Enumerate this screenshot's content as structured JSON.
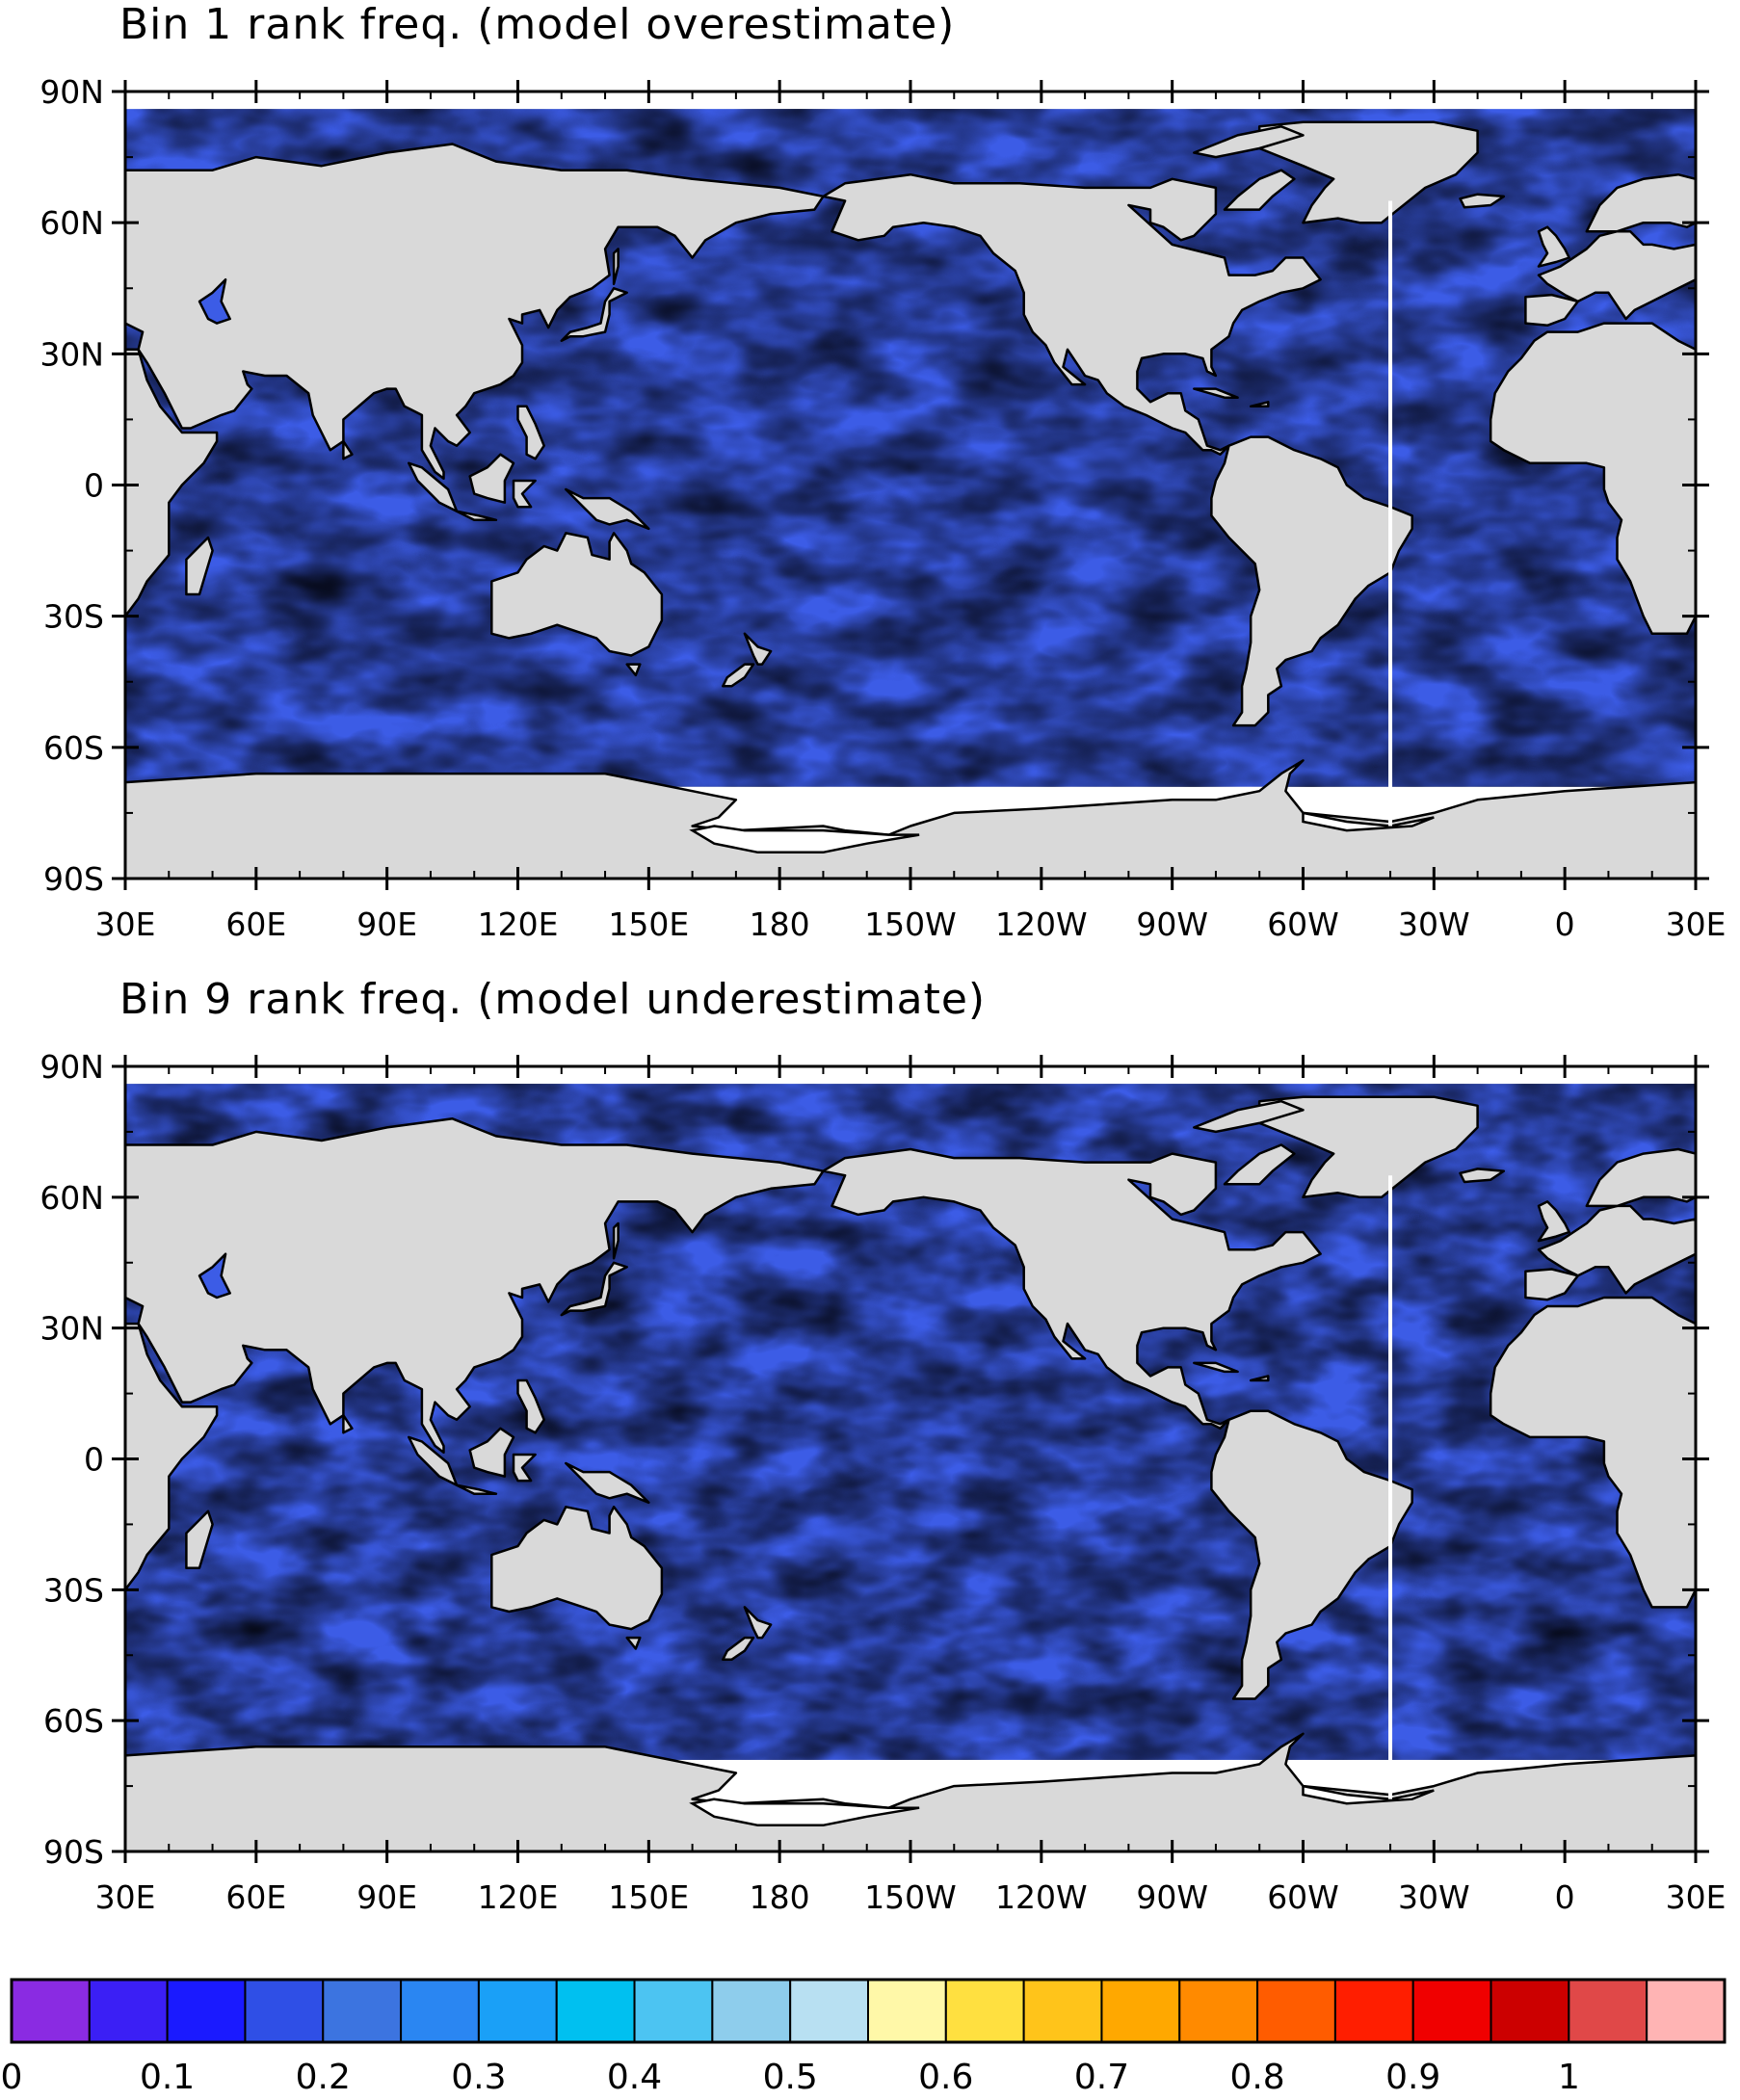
{
  "panels": [
    {
      "title": "Bin 1 rank freq. (model overestimate)"
    },
    {
      "title": "Bin 9 rank freq. (model underestimate)"
    }
  ],
  "lat_labels": [
    "90N",
    "60N",
    "30N",
    "0",
    "30S",
    "60S",
    "90S"
  ],
  "lon_labels": [
    "30E",
    "60E",
    "90E",
    "120E",
    "150E",
    "180",
    "150W",
    "120W",
    "90W",
    "60W",
    "30W",
    "0",
    "30E"
  ],
  "colorbar": {
    "labels": [
      "0",
      "0.1",
      "0.2",
      "0.3",
      "0.4",
      "0.5",
      "0.6",
      "0.7",
      "0.8",
      "0.9",
      "1"
    ],
    "colors": [
      "#8a2be2",
      "#3b1ff5",
      "#1a1aff",
      "#2f4fe6",
      "#3c74e0",
      "#2a86f2",
      "#1aa0f7",
      "#00c0f0",
      "#4cc4f2",
      "#8ecdec",
      "#b8e0f2",
      "#fff8a8",
      "#ffe040",
      "#ffc41a",
      "#ffa800",
      "#ff8a00",
      "#ff5c00",
      "#ff1e00",
      "#f00000",
      "#cc0000",
      "#e04848",
      "#ffb4b4"
    ]
  },
  "colors": {
    "ocean_base": "#3c5ce6",
    "ocean_light": "#2ea4f2",
    "ocean_dark": "#5a2ee6",
    "land": "#d9d9d9"
  }
}
